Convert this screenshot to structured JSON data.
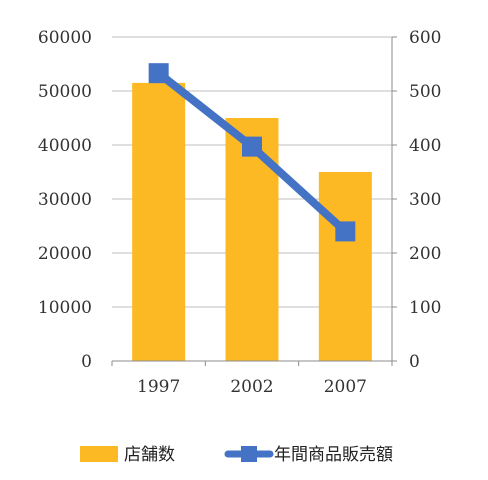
{
  "chart_data": {
    "type": "bar+line",
    "categories": [
      "1997",
      "2002",
      "2007"
    ],
    "series": [
      {
        "name": "店舗数",
        "type": "bar",
        "axis": "left",
        "color": "#FDB924",
        "values": [
          51500,
          45000,
          35000
        ]
      },
      {
        "name": "年間商品販売額",
        "type": "line",
        "axis": "right",
        "color": "#4472C4",
        "values": [
          533,
          397,
          240
        ]
      }
    ],
    "y_left": {
      "ylim": [
        0,
        60000
      ],
      "ticks": [
        0,
        10000,
        20000,
        30000,
        40000,
        50000,
        60000
      ]
    },
    "y_right": {
      "ylim": [
        0,
        600
      ],
      "ticks": [
        0,
        100,
        200,
        300,
        400,
        500,
        600
      ]
    },
    "grid": true,
    "legend": "bottom"
  }
}
